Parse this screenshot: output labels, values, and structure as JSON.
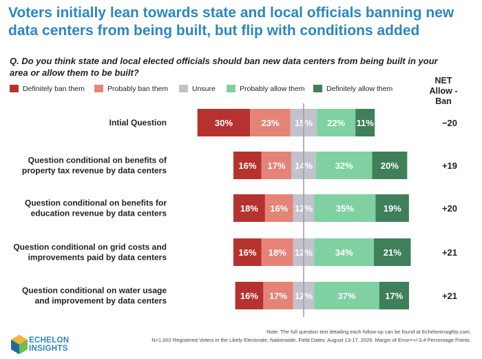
{
  "title_line1": "Voters initially lean towards state and local officials banning new",
  "title_line2": "data centers from being built, but flip with conditions added",
  "question_line1": "Q. Do you think state and local elected officials should ban new data centers from being built in your",
  "question_line2": "area or allow them to be built?",
  "net_header": [
    "NET",
    "Allow -",
    "Ban"
  ],
  "note_line1": "Note: The full question text detailing each follow-up can be found at EchelonInsights.com.",
  "note_line2": "N=1,002 Registered Voters in the Likely Electorate, Nationwide. Field Dates: August 13-17, 2026. Margin of Error=+/-3.4 Percentage Points.",
  "logo_line1": "ECHELON",
  "logo_line2": "INSIGHTS",
  "colors": {
    "definitely_ban": "#b5322f",
    "probably_ban": "#e58377",
    "unsure": "#c2c2cc",
    "probably_allow": "#7fd1a1",
    "definitely_allow": "#3f7f5a",
    "title": "#2a86c6"
  },
  "chart_data": {
    "type": "bar",
    "orientation": "horizontal",
    "stacked": "diverging",
    "legend_position": "top-left",
    "categories": [
      [
        "Intial Question"
      ],
      [
        "Question conditional on benefits of",
        "property tax revenue by data centers"
      ],
      [
        "Question conditional on benefits for",
        "education revenue by data centers"
      ],
      [
        "Question conditional on grid costs and",
        "improvements paid by data centers"
      ],
      [
        "Question conditional on water usage",
        "and improvement by data centers"
      ]
    ],
    "series": [
      {
        "name": "Definitely ban them",
        "color": "#b5322f",
        "values": [
          30,
          16,
          18,
          16,
          16
        ]
      },
      {
        "name": "Probably ban them",
        "color": "#e58377",
        "values": [
          23,
          17,
          16,
          18,
          17
        ]
      },
      {
        "name": "Unsure",
        "color": "#c2c2cc",
        "values": [
          15,
          14,
          12,
          12,
          12
        ]
      },
      {
        "name": "Probably allow them",
        "color": "#7fd1a1",
        "values": [
          22,
          32,
          35,
          34,
          37
        ]
      },
      {
        "name": "Definitely allow them",
        "color": "#3f7f5a",
        "values": [
          11,
          20,
          19,
          21,
          17
        ]
      }
    ],
    "net": [
      "−20",
      "+19",
      "+20",
      "+21",
      "+21"
    ],
    "value_suffix": "%"
  }
}
